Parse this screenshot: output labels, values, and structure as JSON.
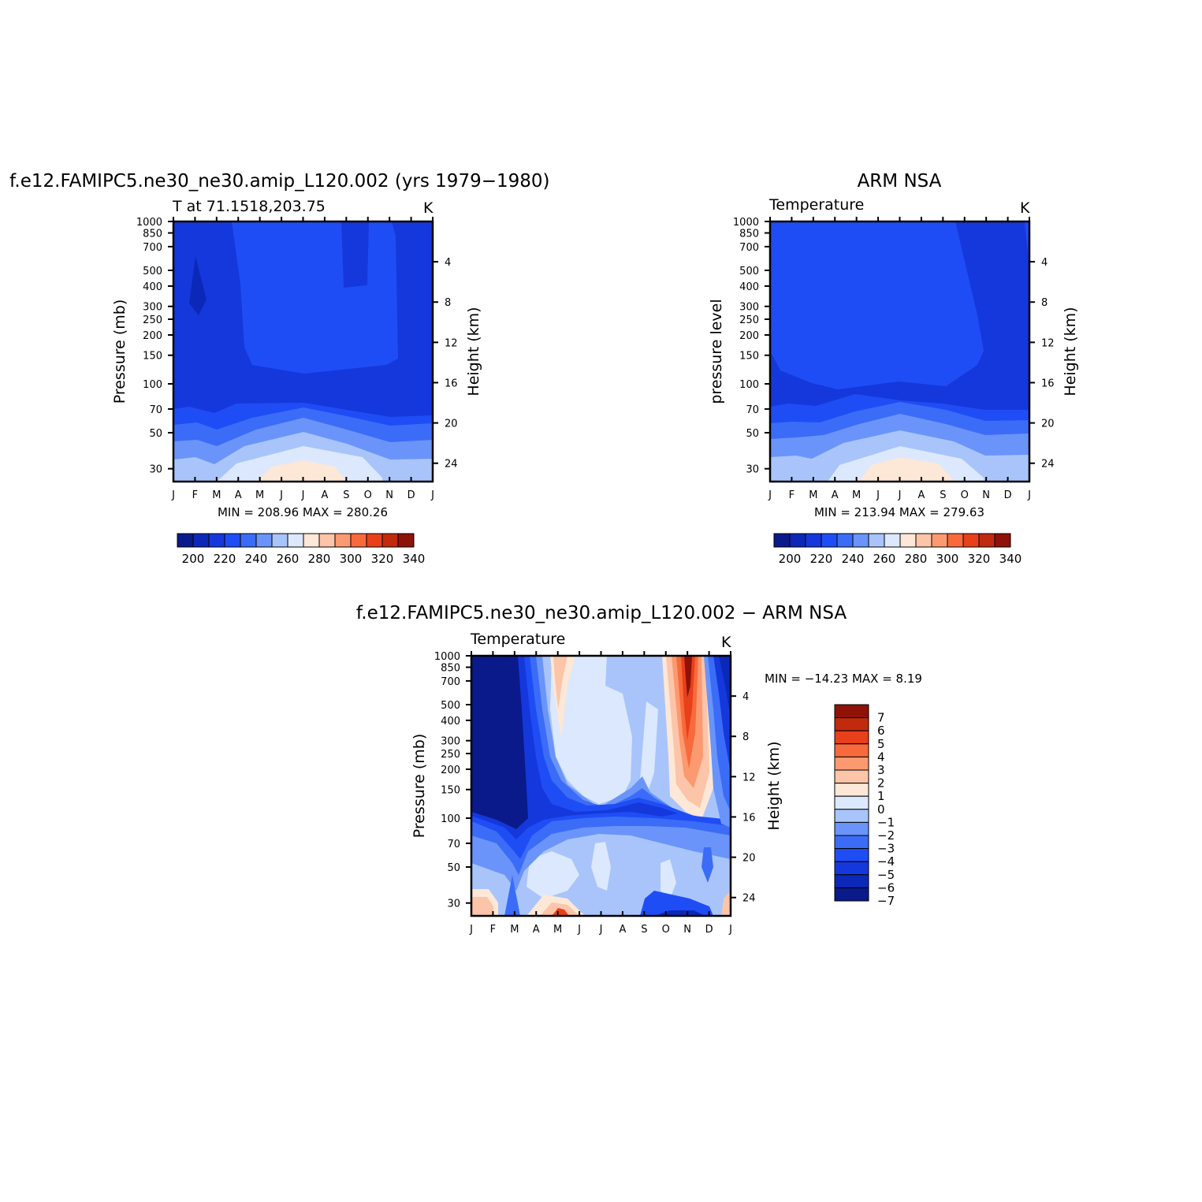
{
  "chart_data": [
    {
      "type": "heatmap",
      "title": "f.e12.FAMIPC5.ne30_ne30.amip_L120.002 (yrs 1979−1980)",
      "subtitle": "T at 71.1518,203.75",
      "units": "K",
      "ylabel": "Pressure (mb)",
      "y2label": "Height (km)",
      "x_ticks": [
        "J",
        "F",
        "M",
        "A",
        "M",
        "J",
        "J",
        "A",
        "S",
        "O",
        "N",
        "D",
        "J"
      ],
      "y_ticks": [
        30,
        50,
        70,
        100,
        150,
        200,
        250,
        300,
        400,
        500,
        700,
        850,
        1000
      ],
      "y_scale": "log",
      "ylim": [
        1000,
        25
      ],
      "y2_ticks": [
        4,
        8,
        12,
        16,
        20,
        24
      ],
      "stats": "MIN = 208.96 MAX = 280.26",
      "colorbar": {
        "orientation": "horizontal",
        "labels": [
          "200",
          "220",
          "240",
          "260",
          "280",
          "300",
          "320",
          "340"
        ],
        "colors": [
          "#0a1a8a",
          "#0b28b8",
          "#1538dc",
          "#1f4df5",
          "#3b6cf8",
          "#6a94f9",
          "#a8c4fb",
          "#dce8fd",
          "#fde7d6",
          "#fcc4a8",
          "#fb9970",
          "#f86a3c",
          "#e8401b",
          "#c22a0e",
          "#8f1208"
        ]
      }
    },
    {
      "type": "heatmap",
      "title": "ARM NSA",
      "subtitle": "Temperature",
      "units": "K",
      "ylabel": "pressure level",
      "y2label": "Height (km)",
      "x_ticks": [
        "J",
        "F",
        "M",
        "A",
        "M",
        "J",
        "J",
        "A",
        "S",
        "O",
        "N",
        "D",
        "J"
      ],
      "y_ticks": [
        30,
        50,
        70,
        100,
        150,
        200,
        250,
        300,
        400,
        500,
        700,
        850,
        1000
      ],
      "y_scale": "log",
      "ylim": [
        1000,
        25
      ],
      "y2_ticks": [
        4,
        8,
        12,
        16,
        20,
        24
      ],
      "stats": "MIN = 213.94 MAX = 279.63",
      "colorbar": {
        "orientation": "horizontal",
        "labels": [
          "200",
          "220",
          "240",
          "260",
          "280",
          "300",
          "320",
          "340"
        ],
        "colors": [
          "#0a1a8a",
          "#0b28b8",
          "#1538dc",
          "#1f4df5",
          "#3b6cf8",
          "#6a94f9",
          "#a8c4fb",
          "#dce8fd",
          "#fde7d6",
          "#fcc4a8",
          "#fb9970",
          "#f86a3c",
          "#e8401b",
          "#c22a0e",
          "#8f1208"
        ]
      }
    },
    {
      "type": "heatmap",
      "title": "f.e12.FAMIPC5.ne30_ne30.amip_L120.002 − ARM NSA",
      "subtitle": "Temperature",
      "units": "K",
      "ylabel": "Pressure (mb)",
      "y2label": "Height (km)",
      "x_ticks": [
        "J",
        "F",
        "M",
        "A",
        "M",
        "J",
        "J",
        "A",
        "S",
        "O",
        "N",
        "D",
        "J"
      ],
      "y_ticks": [
        30,
        50,
        70,
        100,
        150,
        200,
        250,
        300,
        400,
        500,
        700,
        850,
        1000
      ],
      "y_scale": "log",
      "ylim": [
        1000,
        25
      ],
      "y2_ticks": [
        4,
        8,
        12,
        16,
        20,
        24
      ],
      "stats": "MIN = −14.23 MAX =    8.19",
      "colorbar": {
        "orientation": "vertical",
        "labels": [
          "7",
          "6",
          "5",
          "4",
          "3",
          "2",
          "1",
          "0",
          "−1",
          "−2",
          "−3",
          "−4",
          "−5",
          "−6",
          "−7"
        ],
        "colors": [
          "#8f1208",
          "#c22a0e",
          "#e8401b",
          "#f86a3c",
          "#fb9970",
          "#fcc4a8",
          "#fde7d6",
          "#dce8fd",
          "#a8c4fb",
          "#6a94f9",
          "#3b6cf8",
          "#1f4df5",
          "#1538dc",
          "#0b28b8",
          "#0a1a8a"
        ]
      }
    }
  ]
}
